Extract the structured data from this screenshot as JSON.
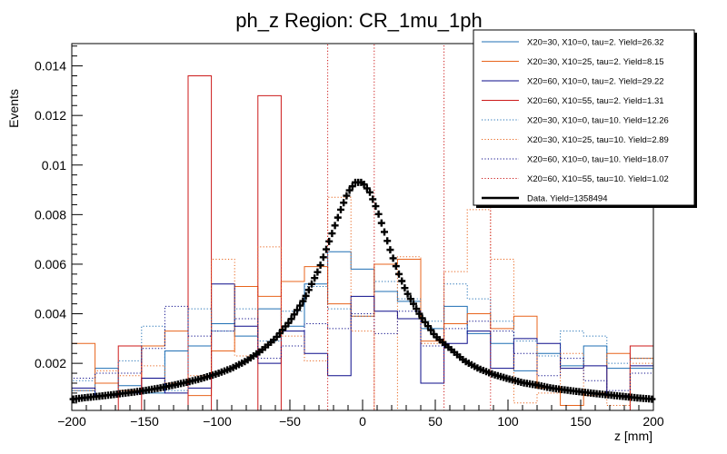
{
  "chart_data": {
    "type": "line",
    "title": "ph_z Region: CR_1mu_1ph",
    "xlabel": "z [mm]",
    "ylabel": "Events",
    "xlim": [
      -200,
      200
    ],
    "ylim": [
      0.0001,
      0.0149
    ],
    "x_ticks": [
      -200,
      -150,
      -100,
      -50,
      0,
      50,
      100,
      150,
      200
    ],
    "x_tick_labels": [
      "−200",
      "−150",
      "−100",
      "−50",
      "0",
      "50",
      "100",
      "150",
      "200"
    ],
    "y_ticks": [
      0.002,
      0.004,
      0.006,
      0.008,
      0.01,
      0.012,
      0.014
    ],
    "y_tick_labels": [
      "0.002",
      "0.004",
      "0.006",
      "0.008",
      "0.01",
      "0.012",
      "0.014"
    ],
    "bin_edges": [
      -200,
      -184,
      -168,
      -152,
      -136,
      -120,
      -104,
      -88,
      -72,
      -56,
      -40,
      -24,
      -8,
      8,
      24,
      40,
      56,
      72,
      88,
      104,
      120,
      136,
      152,
      168,
      184,
      200
    ],
    "legend_position": "top-right",
    "series": [
      {
        "name": "X20=30, X10=0, tau=2. Yield=26.32",
        "color": "#1f6fb4",
        "style": "solid",
        "values": [
          0.0009,
          0.0018,
          0.0011,
          0.0008,
          0.0025,
          0.0027,
          0.0036,
          0.0031,
          0.0042,
          0.0035,
          0.0052,
          0.0065,
          0.0058,
          0.0049,
          0.0045,
          0.0034,
          0.0043,
          0.0032,
          0.0028,
          0.0017,
          0.0024,
          0.0019,
          0.0027,
          0.0018,
          0.0018
        ]
      },
      {
        "name": "X20=30, X10=25, tau=2. Yield=8.15",
        "color": "#e8641c",
        "style": "solid",
        "values": [
          0.0028,
          0.0012,
          0.0009,
          0.0027,
          0.0033,
          0.0007,
          0.0025,
          0.0051,
          0.0047,
          0.0053,
          0.0059,
          0.0044,
          0.0039,
          0.006,
          0.0062,
          0.0029,
          0.0036,
          0.004,
          0.0034,
          0.0039,
          0.001,
          0.0003,
          0.0008,
          0.0024,
          0.0022
        ]
      },
      {
        "name": "X20=60, X10=0, tau=2. Yield=29.22",
        "color": "#0b0b8a",
        "style": "solid",
        "values": [
          0.001,
          0.0007,
          0.0008,
          0.0014,
          0.0008,
          0.001,
          0.0052,
          0.0035,
          0.002,
          0.0033,
          0.0024,
          0.0015,
          0.0047,
          0.0041,
          0.0038,
          0.0012,
          0.0028,
          0.0033,
          0.0018,
          0.003,
          0.0028,
          0.0018,
          0.0019,
          0.0007,
          0.0019
        ]
      },
      {
        "name": "X20=60, X10=55, tau=2. Yield=1.31",
        "color": "#cc1a1a",
        "style": "solid",
        "values": [
          0.0001,
          0.0001,
          0.0027,
          0.0001,
          0.0001,
          0.0136,
          0.0001,
          0.0001,
          0.0128,
          0.0001,
          0.0001,
          0.0001,
          0.0001,
          0.0001,
          0.0001,
          0.0001,
          0.0001,
          0.0001,
          0.0001,
          0.0001,
          0.0001,
          0.0001,
          0.0001,
          0.0001,
          0.0027
        ]
      },
      {
        "name": "X20=30, X10=0, tau=10. Yield=12.26",
        "color": "#1f6fb4",
        "style": "dotted",
        "values": [
          0.0013,
          0.0007,
          0.0021,
          0.0035,
          0.0009,
          0.0042,
          0.0033,
          0.0042,
          0.0029,
          0.0041,
          0.0051,
          0.0042,
          0.0039,
          0.0053,
          0.0046,
          0.0037,
          0.0052,
          0.0046,
          0.0037,
          0.0029,
          0.0023,
          0.0033,
          0.0031,
          0.002,
          0.0022
        ]
      },
      {
        "name": "X20=30, X10=25, tau=10. Yield=2.89",
        "color": "#e8641c",
        "style": "dotted",
        "values": [
          0.0009,
          0.0017,
          0.0015,
          0.0019,
          0.0012,
          0.0015,
          0.0062,
          0.0023,
          0.0067,
          0.0031,
          0.0021,
          0.0087,
          0.0033,
          0.0001,
          0.0063,
          0.0028,
          0.0057,
          0.0082,
          0.0062,
          0.0004,
          0.0008,
          0.0024,
          0.0007,
          0.0003,
          0.002
        ]
      },
      {
        "name": "X20=60, X10=0, tau=10. Yield=18.07",
        "color": "#0b0b8a",
        "style": "dotted",
        "values": [
          0.0014,
          0.0016,
          0.0016,
          0.0026,
          0.0043,
          0.0031,
          0.0033,
          0.0038,
          0.0022,
          0.0027,
          0.0036,
          0.0034,
          0.004,
          0.0032,
          0.0041,
          0.0027,
          0.0034,
          0.0037,
          0.0033,
          0.0024,
          0.0015,
          0.0022,
          0.0013,
          0.0009,
          0.0016
        ]
      },
      {
        "name": "X20=60, X10=55, tau=10. Yield=1.02",
        "color": "#cc1a1a",
        "style": "dotted",
        "values": [
          0.0001,
          0.0001,
          0.0001,
          0.0001,
          0.0001,
          0.0001,
          0.0001,
          0.0001,
          0.0001,
          0.0001,
          0.0001,
          0.0149,
          0.0149,
          0.0001,
          0.0001,
          0.0001,
          0.0149,
          0.0149,
          0.0001,
          0.0001,
          0.0001,
          0.0001,
          0.0001,
          0.0001,
          0.0001
        ]
      }
    ],
    "data_series": {
      "name": "Data. Yield=1358494",
      "color": "#000000",
      "style": "markers",
      "x": [
        -200,
        -190,
        -180,
        -170,
        -160,
        -150,
        -140,
        -130,
        -120,
        -110,
        -100,
        -90,
        -80,
        -70,
        -60,
        -50,
        -40,
        -30,
        -25,
        -20,
        -15,
        -10,
        -5,
        0,
        5,
        10,
        15,
        20,
        25,
        30,
        40,
        50,
        60,
        70,
        80,
        90,
        100,
        110,
        120,
        130,
        140,
        150,
        160,
        170,
        180,
        190,
        200
      ],
      "y": [
        0.00055,
        0.00062,
        0.00068,
        0.00075,
        0.00082,
        0.0009,
        0.001,
        0.00112,
        0.00125,
        0.0014,
        0.00158,
        0.0018,
        0.0021,
        0.0025,
        0.003,
        0.0037,
        0.0046,
        0.0058,
        0.0066,
        0.0074,
        0.0082,
        0.0089,
        0.0093,
        0.0093,
        0.0089,
        0.0082,
        0.0073,
        0.0064,
        0.0056,
        0.0049,
        0.0039,
        0.0031,
        0.0026,
        0.0021,
        0.00178,
        0.00155,
        0.00138,
        0.00122,
        0.00112,
        0.001,
        0.00092,
        0.00085,
        0.00078,
        0.00072,
        0.00066,
        0.0006,
        0.00055
      ]
    }
  }
}
